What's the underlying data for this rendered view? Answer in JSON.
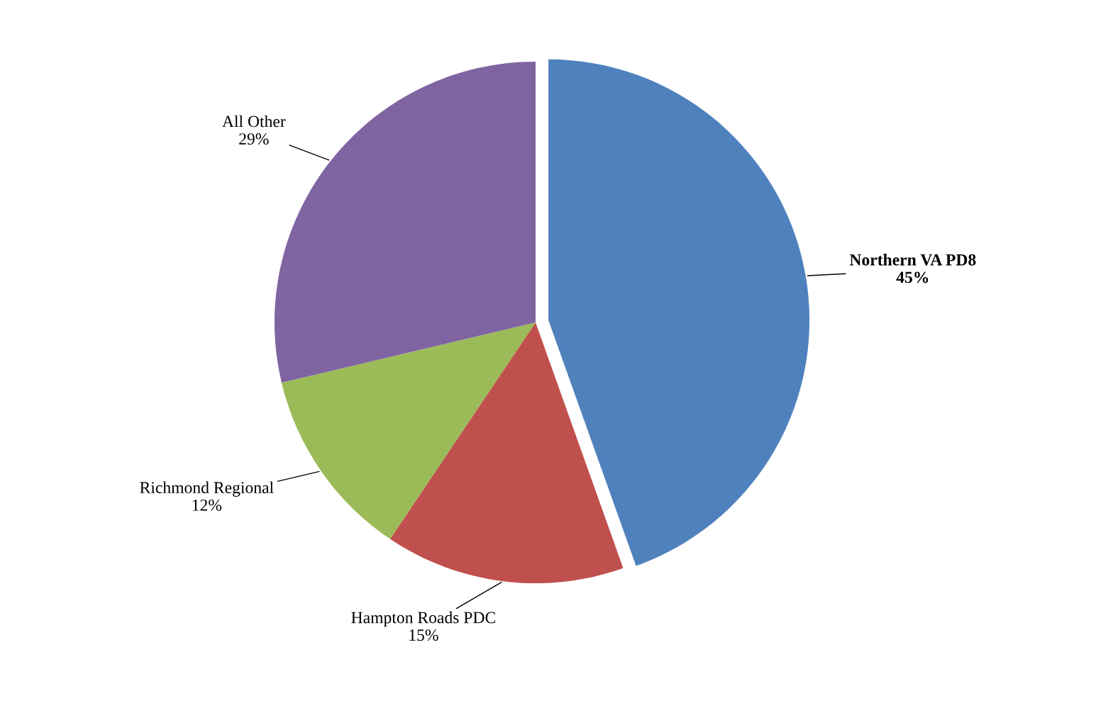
{
  "chart_data": {
    "type": "pie",
    "categories": [
      "Northern VA PD8",
      "Hampton Roads PDC",
      "Richmond Regional",
      "All Other"
    ],
    "values": [
      45,
      15,
      12,
      29
    ],
    "value_labels": [
      "45%",
      "15%",
      "12%",
      "29%"
    ],
    "colors": [
      "#4f81bd",
      "#c0504d",
      "#9bbb59",
      "#8064a2"
    ],
    "legend": false
  }
}
